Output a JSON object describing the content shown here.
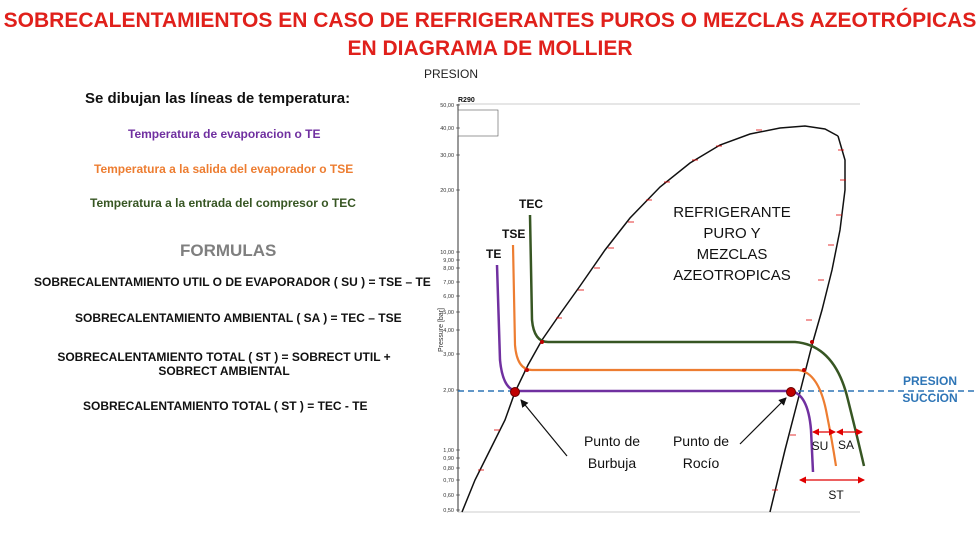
{
  "title_line1": "SOBRECALENTAMIENTOS EN CASO DE REFRIGERANTES PUROS O MEZCLAS AZEOTRÓPICAS",
  "title_line2": "EN DIAGRAMA DE MOLLIER",
  "pressure_top_label": "PRESION",
  "lead_text": "Se dibujan las líneas de temperatura:",
  "legend": {
    "te": "Temperatura de evaporacion o TE",
    "tse": "Temperatura a la salida del evaporador o TSE",
    "tec": "Temperatura a la entrada del compresor o TEC"
  },
  "formulas_heading": "FORMULAS",
  "formulas": [
    "SOBRECALENTAMIENTO UTIL O DE EVAPORADOR ( SU ) = TSE – TE",
    "SOBRECALENTAMIENTO AMBIENTAL ( SA ) = TEC – TSE",
    "SOBRECALENTAMIENTO TOTAL ( ST ) = SOBRECT UTIL + SOBRECT AMBIENTAL",
    "SOBRECALENTAMIENTO TOTAL ( ST ) = TEC - TE"
  ],
  "chart": {
    "refrigerant": "R290",
    "y_axis_label": "Pressure [bar]",
    "y_ticks": [
      "50,00",
      "40,00",
      "30,00",
      "20,00",
      "10,00",
      "9,00",
      "8,00",
      "7,00",
      "6,00",
      "5,00",
      "4,00",
      "3,00",
      "2,00",
      "1,00",
      "0,90",
      "0,80",
      "0,70",
      "0,60",
      "0,50"
    ],
    "region_label_lines": [
      "REFRIGERANTE",
      "PURO Y",
      "MEZCLAS",
      "AZEOTROPICAS"
    ],
    "line_labels": {
      "te": "TE",
      "tse": "TSE",
      "tec": "TEC"
    },
    "bubble_point_lines": [
      "Punto de",
      "Burbuja"
    ],
    "dew_point_lines": [
      "Punto de",
      "Rocío"
    ],
    "presion_succion_lines": [
      "PRESION",
      "SUCCION"
    ],
    "su_label": "SU",
    "sa_label": "SA",
    "st_label": "ST"
  },
  "colors": {
    "title": "#e0201b",
    "te": "#7030a0",
    "tse": "#ed7d31",
    "tec": "#375623",
    "suction_line": "#2e75b6",
    "markers": "#c00000"
  }
}
